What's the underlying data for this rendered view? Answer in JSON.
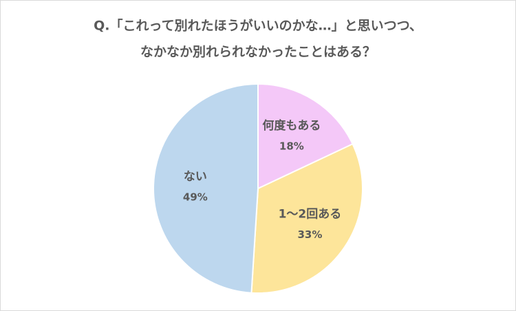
{
  "chart_data": {
    "type": "pie",
    "title": [
      "Q.「これって別れたほうがいいのかな…」と思いつつ、",
      "なかなか別れられなかったことはある？"
    ],
    "categories": [
      "何度もある",
      "1～2回ある",
      "ない"
    ],
    "values": [
      18,
      33,
      49
    ],
    "value_labels": [
      "18%",
      "33%",
      "49%"
    ],
    "colors": [
      "#f4c8f8",
      "#fde59a",
      "#bdd7ee"
    ]
  }
}
